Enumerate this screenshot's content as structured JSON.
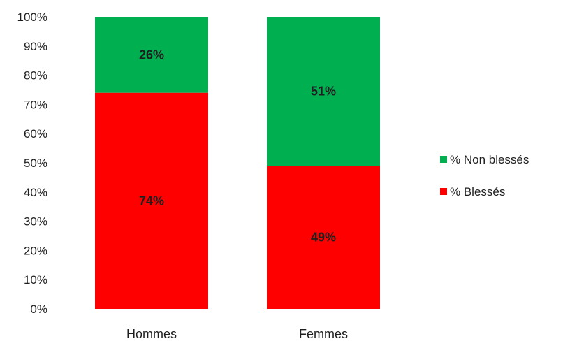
{
  "chart_data": {
    "type": "bar",
    "stacked": true,
    "categories": [
      "Hommes",
      "Femmes"
    ],
    "series": [
      {
        "name": "% Blessés",
        "values": [
          74,
          49
        ],
        "labels": [
          "74%",
          "49%"
        ],
        "color": "#ff0000"
      },
      {
        "name": "% Non blessés",
        "values": [
          26,
          51
        ],
        "labels": [
          "26%",
          "51%"
        ],
        "color": "#00b050"
      }
    ],
    "ylim": [
      0,
      100
    ],
    "y_ticks": [
      "0%",
      "10%",
      "20%",
      "30%",
      "40%",
      "50%",
      "60%",
      "70%",
      "80%",
      "90%",
      "100%"
    ],
    "legend_order": [
      "% Non blessés",
      "% Blessés"
    ],
    "legend_position": "right",
    "grid": false
  }
}
